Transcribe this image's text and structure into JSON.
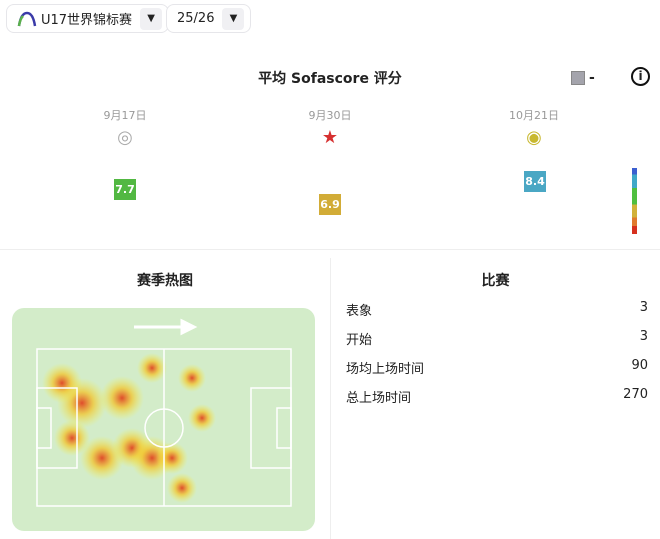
{
  "selectors": {
    "tournament": "U17世界锦标赛",
    "season": "25/26"
  },
  "rating": {
    "title": "平均 Sofascore 评分",
    "legend_value": "-",
    "matches": [
      {
        "date": "9月17日",
        "rating": "7.7",
        "color": "#52b842",
        "logo": "ajax-crest"
      },
      {
        "date": "9月30日",
        "rating": "6.9",
        "color": "#d2ac37",
        "logo": "red-star-crest"
      },
      {
        "date": "10月21日",
        "rating": "8.4",
        "color": "#4aa7c4",
        "logo": "union-sg-crest"
      }
    ]
  },
  "heatmap": {
    "title": "赛季热图"
  },
  "stats": {
    "title": "比赛",
    "rows": [
      {
        "label": "表象",
        "value": "3"
      },
      {
        "label": "开始",
        "value": "3"
      },
      {
        "label": "场均上场时间",
        "value": "90"
      },
      {
        "label": "总上场时间",
        "value": "270"
      }
    ]
  }
}
